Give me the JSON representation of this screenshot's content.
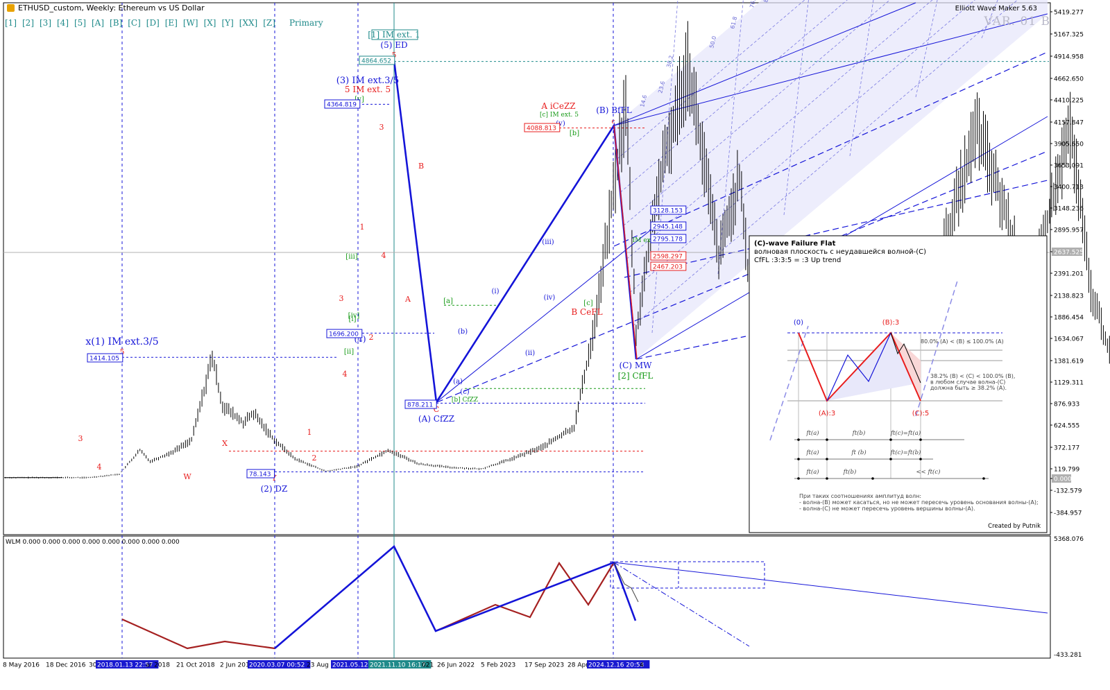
{
  "header": {
    "title": "ETHUSD_custom, Weekly:  Ethereum vs US Dollar",
    "tool_name": "Elliott Wave Maker 5.63",
    "variant": "VAR. 01 B",
    "degree_buttons": [
      "[1]",
      "[2]",
      "[3]",
      "[4]",
      "[5]",
      "[A]",
      "[B]",
      "[C]",
      "[D]",
      "[E]",
      "[W]",
      "[X]",
      "[Y]",
      "[XX]",
      "[Z]",
      "Primary"
    ]
  },
  "colors": {
    "impulse_blue": "#1414d8",
    "correction_red": "#e81c1c",
    "subwave_green": "#179a17",
    "teal": "#1f8a8a",
    "fan_fill": "#e6e6fb",
    "oscillator_red": "#a52020"
  },
  "chart_data": {
    "type": "line",
    "title": "ETHUSD_custom, Weekly:  Ethereum vs US Dollar",
    "xlabel": "",
    "ylabel": "",
    "ylim": [
      -500,
      5500
    ],
    "y_axis_ticks": [
      "5419.277",
      "5167.325",
      "4914.958",
      "4662.650",
      "4410.225",
      "4157.847",
      "3905.650",
      "3653.091",
      "3400.713",
      "3148.236",
      "2895.957",
      "2637.525",
      "2391.201",
      "2138.823",
      "1886.454",
      "1634.067",
      "1381.619",
      "1129.311",
      "876.933",
      "624.555",
      "372.177",
      "119.799",
      "0.000",
      "-132.579",
      "-384.957"
    ],
    "current_price": "2637.525",
    "x_axis_ticks": [
      "8 May 2016",
      "18 Dec 2016",
      "30",
      "2018.01.13 22:57",
      "ar 2018",
      "21 Oct 2018",
      "2 Jun 201",
      "2020.03.07 00:52",
      "23 Aug 2",
      "2021.05.12",
      "2021.11.10 16:17",
      "021",
      "26 Jun 2022",
      "5 Feb 2023",
      "17 Sep 2023",
      "28 Apr",
      "2024.12.16 20:53",
      "4"
    ],
    "ohlc_weekly_approx": [
      [
        "2016-05",
        10
      ],
      [
        "2016-10",
        11
      ],
      [
        "2017-01",
        10
      ],
      [
        "2017-04",
        50
      ],
      [
        "2017-06",
        330
      ],
      [
        "2017-07",
        200
      ],
      [
        "2017-09",
        300
      ],
      [
        "2017-11",
        450
      ],
      [
        "2018-01",
        1414
      ],
      [
        "2018-02",
        850
      ],
      [
        "2018-04",
        650
      ],
      [
        "2018-05",
        760
      ],
      [
        "2018-07",
        450
      ],
      [
        "2018-09",
        230
      ],
      [
        "2018-12",
        84
      ],
      [
        "2019-03",
        140
      ],
      [
        "2019-06",
        330
      ],
      [
        "2019-09",
        170
      ],
      [
        "2019-12",
        130
      ],
      [
        "2020-03",
        110
      ],
      [
        "2020-06",
        230
      ],
      [
        "2020-09",
        370
      ],
      [
        "2020-12",
        600
      ],
      [
        "2021-02",
        1800
      ],
      [
        "2021-05",
        4364
      ],
      [
        "2021-06",
        1700
      ],
      [
        "2021-08",
        3300
      ],
      [
        "2021-11",
        4864
      ],
      [
        "2022-02",
        2600
      ],
      [
        "2022-04",
        3500
      ],
      [
        "2022-06",
        878
      ],
      [
        "2022-08",
        1950
      ],
      [
        "2022-11",
        1100
      ],
      [
        "2023-04",
        2130
      ],
      [
        "2023-09",
        1550
      ],
      [
        "2024-03",
        4088
      ],
      [
        "2024-06",
        3000
      ],
      [
        "2024-08",
        2100
      ],
      [
        "2024-12",
        4100
      ],
      [
        "2025-02",
        2200
      ],
      [
        "2025-04",
        1400
      ],
      [
        "2025-06",
        2637
      ]
    ],
    "price_boxes": [
      {
        "label": "1414.105",
        "color": "blue"
      },
      {
        "label": "4364.819",
        "color": "blue"
      },
      {
        "label": "4864.652",
        "color": "teal"
      },
      {
        "label": "1696.200",
        "color": "blue"
      },
      {
        "label": "878.211",
        "color": "blue"
      },
      {
        "label": "78.143",
        "color": "blue"
      },
      {
        "label": "4088.813",
        "color": "red"
      },
      {
        "label": "3128.153",
        "color": "blue"
      },
      {
        "label": "2945.148",
        "color": "blue"
      },
      {
        "label": "2795.178",
        "color": "blue"
      },
      {
        "label": "2598.297",
        "color": "red"
      },
      {
        "label": "2467.203",
        "color": "red"
      }
    ],
    "wave_labels": [
      {
        "text": "x(1) IM ext.3/5",
        "color": "blue"
      },
      {
        "text": "(3) IM ext.3/5",
        "color": "blue"
      },
      {
        "text": "5 IM ext. 5",
        "color": "red"
      },
      {
        "text": "[1] IM ext. 1",
        "color": "teal"
      },
      {
        "text": "(5) ED",
        "color": "blue"
      },
      {
        "text": "(2) DZ",
        "color": "blue"
      },
      {
        "text": "(4)",
        "color": "blue"
      },
      {
        "text": "(A) CfZZ",
        "color": "blue"
      },
      {
        "text": "A iCeZZ",
        "color": "red"
      },
      {
        "text": "[c] IM ext. 5",
        "color": "green"
      },
      {
        "text": "(B) BfFL",
        "color": "blue"
      },
      {
        "text": "B CeFL",
        "color": "red"
      },
      {
        "text": "(C) MW",
        "color": "blue"
      },
      {
        "text": "[2] CfFL",
        "color": "green"
      },
      {
        "text": "IM ext.",
        "color": "green"
      },
      {
        "text": "[b] CfZZ",
        "color": "green"
      },
      {
        "text": "3",
        "color": "red"
      },
      {
        "text": "4",
        "color": "red"
      },
      {
        "text": "5",
        "color": "red"
      },
      {
        "text": "W",
        "color": "red"
      },
      {
        "text": "X",
        "color": "red"
      },
      {
        "text": "Y",
        "color": "red"
      },
      {
        "text": "1",
        "color": "red"
      },
      {
        "text": "2",
        "color": "red"
      },
      {
        "text": "B",
        "color": "red"
      },
      {
        "text": "A",
        "color": "red"
      },
      {
        "text": "C",
        "color": "red"
      },
      {
        "text": "c",
        "color": "red"
      },
      {
        "text": "(i)",
        "color": "blue"
      },
      {
        "text": "(ii)",
        "color": "blue"
      },
      {
        "text": "(iii)",
        "color": "blue"
      },
      {
        "text": "(iv)",
        "color": "blue"
      },
      {
        "text": "(v)",
        "color": "blue"
      },
      {
        "text": "(a)",
        "color": "blue"
      },
      {
        "text": "(b)",
        "color": "blue"
      },
      {
        "text": "(c)",
        "color": "blue"
      },
      {
        "text": "[a]",
        "color": "green"
      },
      {
        "text": "[b]",
        "color": "green"
      },
      {
        "text": "[c]",
        "color": "green"
      },
      {
        "text": "[i]",
        "color": "green"
      },
      {
        "text": "[ii]",
        "color": "green"
      },
      {
        "text": "[iii]",
        "color": "green"
      },
      {
        "text": "[iv]",
        "color": "green"
      },
      {
        "text": "[v]",
        "color": "green"
      }
    ],
    "fan_labels": [
      "14.6",
      "23.6",
      "38.2",
      "50.0",
      "61.8",
      "76.4",
      "88.6"
    ],
    "oscillator": {
      "label": "WLM 0.000 0.000 0.000 0.000 0.000 0.000 0.000 0.000",
      "y_ticks": [
        "5368.076",
        "-433.281"
      ]
    }
  },
  "info_panel": {
    "title": "(C)-wave Failure Flat",
    "subtitle_ru": "волновая плоскость с неудавшейся волной-(С)",
    "formula": "CfFL :3:3:5 = :3 Up trend",
    "points": [
      "(0)",
      "(B):3",
      "(A):3",
      "(C):5"
    ],
    "ratio_b": "80.0% (A) < (B) ≤ 100.0% (A)",
    "ratio_c_lines": [
      "38.2% (B) < (C) < 100.0% (B),",
      "в любом случае волна-(С)",
      "должна быть ≥ 38.2% (A)."
    ],
    "time_rows": [
      [
        "ft(a)",
        "ft(b)",
        "ft(c)=ft(a)"
      ],
      [
        "ft(a)",
        "ft (b)",
        "ft(c)=ft(b)"
      ],
      [
        "ft(a)",
        "ft(b)",
        "<< ft(c)"
      ]
    ],
    "notes": [
      "При таких соотношениях амплитуд волн:",
      "- волна-(В) может касаться, но не может пересечь уровень основания волны-(А);",
      "- волна-(С) не может пересечь уровень вершины волны-(А)."
    ],
    "credit": "Created by Putnik"
  }
}
